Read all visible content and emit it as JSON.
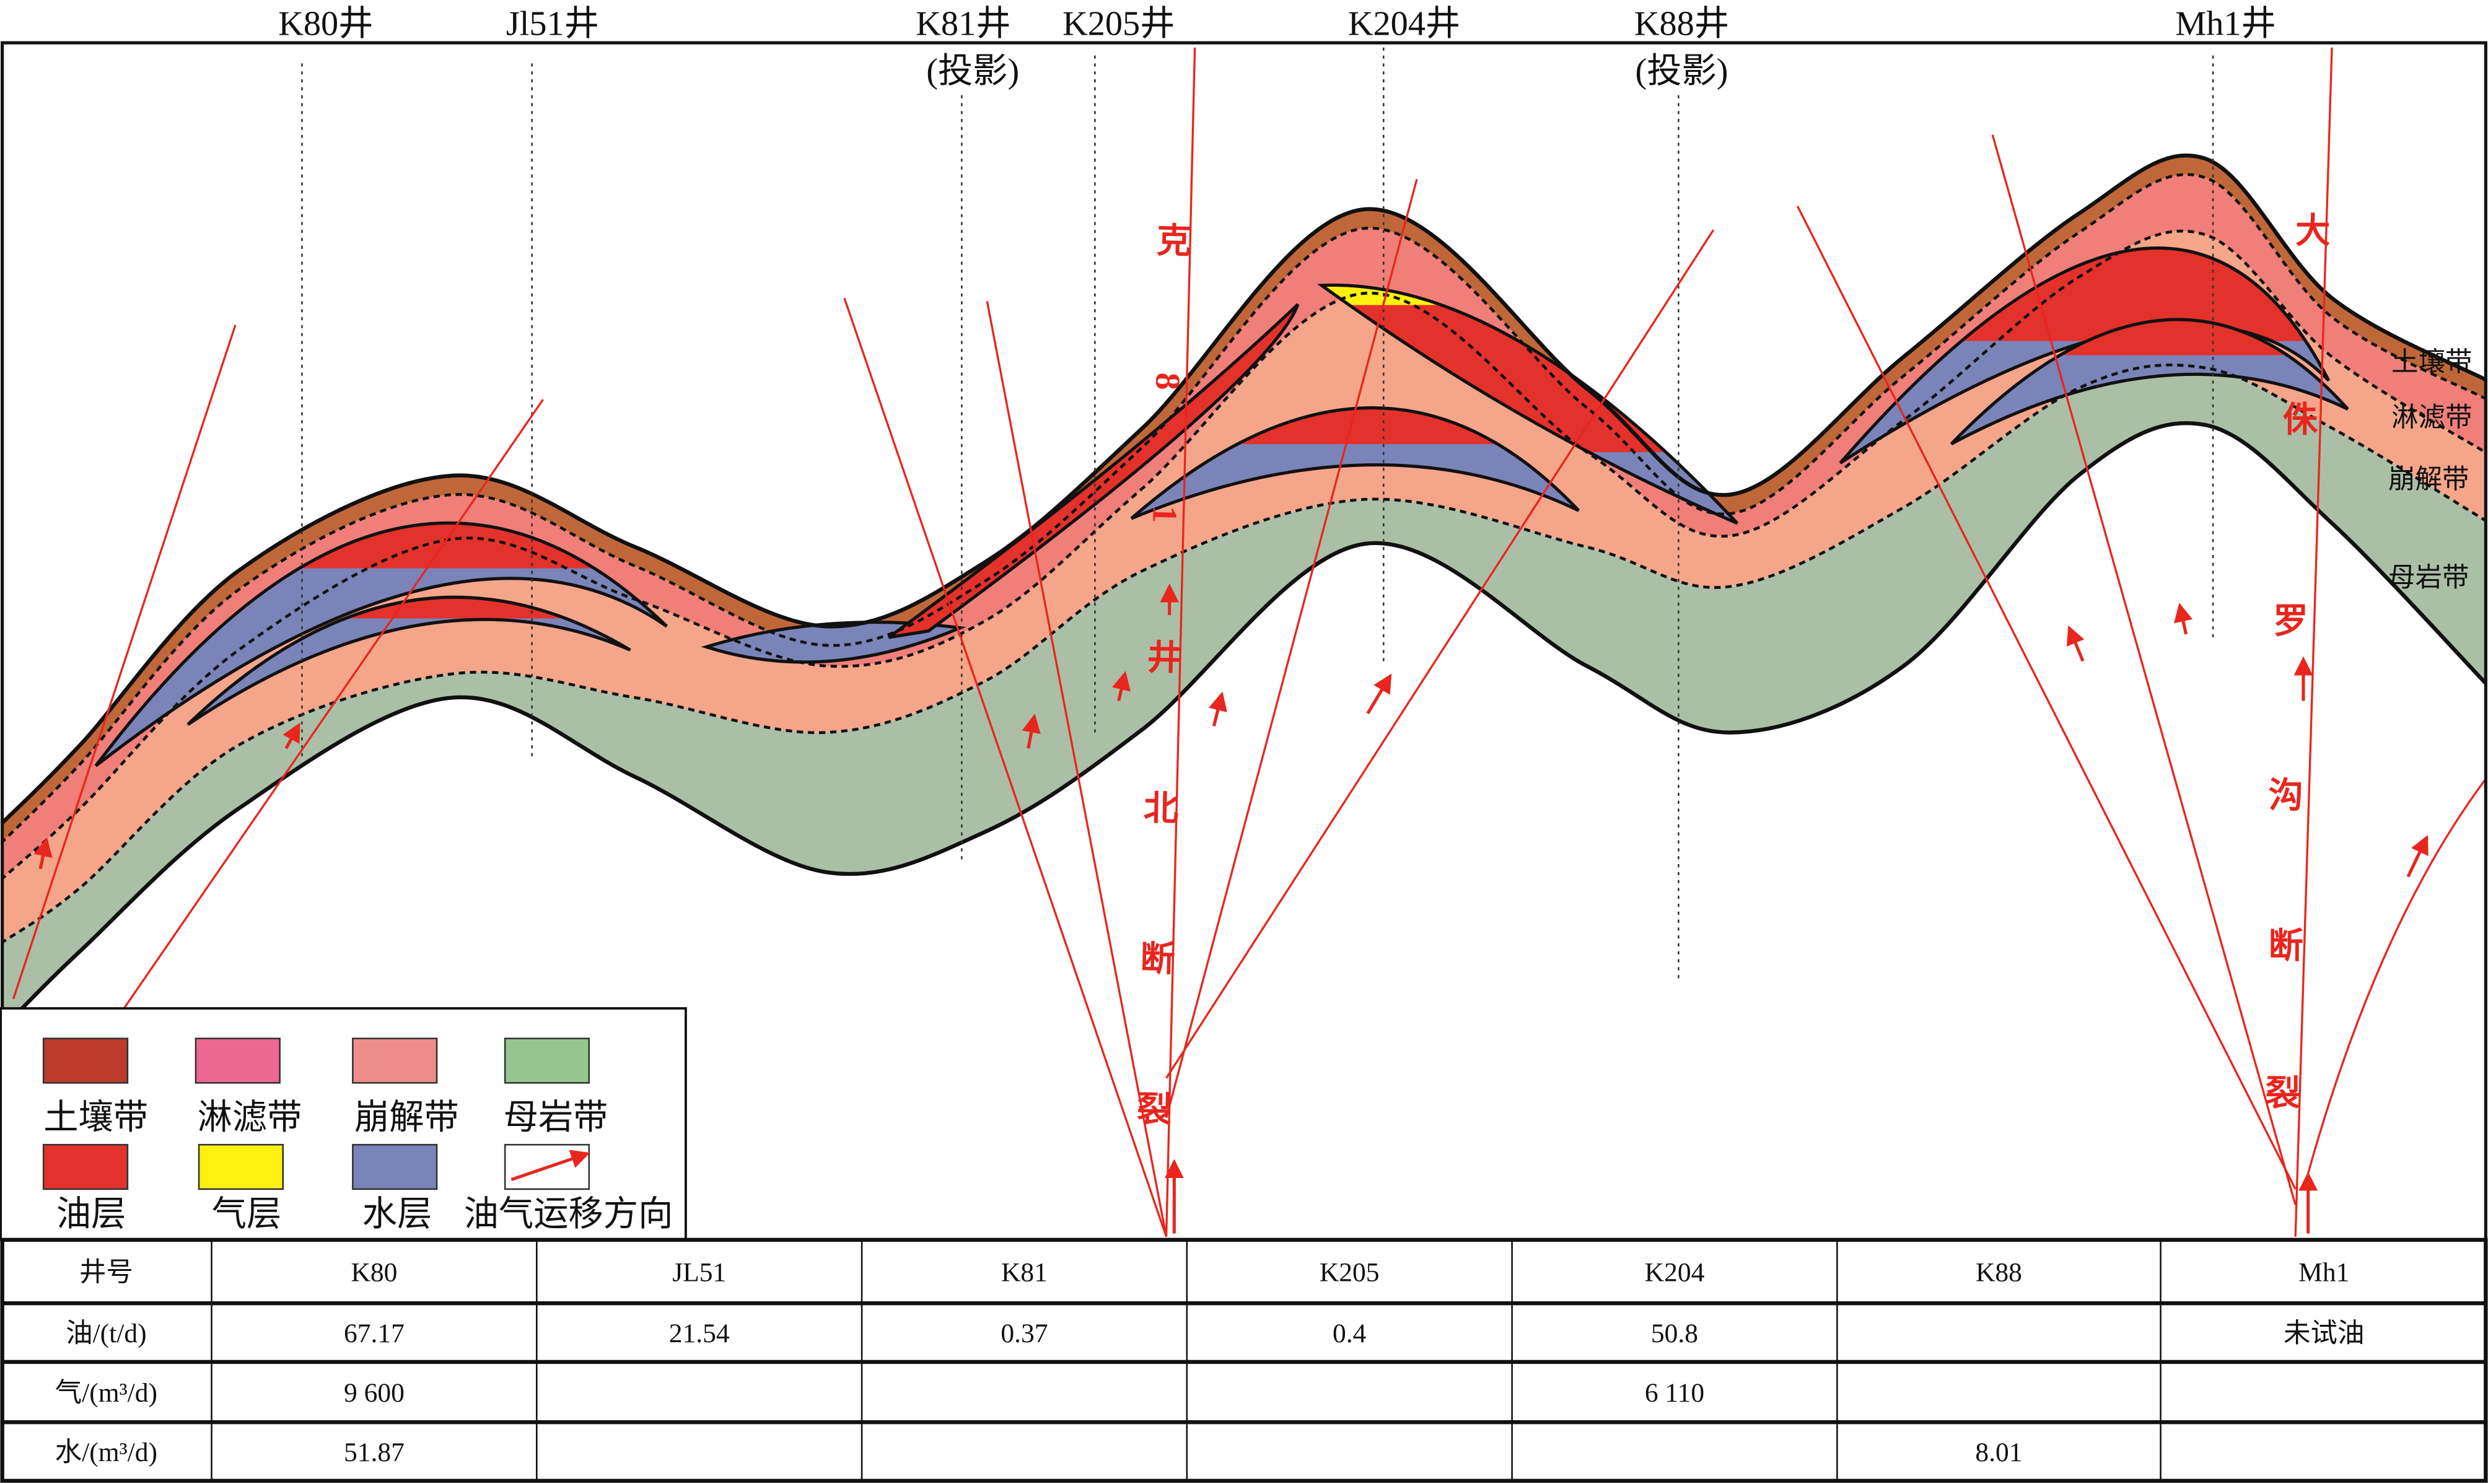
{
  "wells": [
    {
      "id": "k80",
      "label": "K80井"
    },
    {
      "id": "jl51",
      "label": "Jl51井"
    },
    {
      "id": "k81",
      "label": "K81井",
      "note": "(投影)"
    },
    {
      "id": "k205",
      "label": "K205井"
    },
    {
      "id": "k204",
      "label": "K204井"
    },
    {
      "id": "k88",
      "label": "K88井",
      "note": "(投影)"
    },
    {
      "id": "mh1",
      "label": "Mh1井"
    }
  ],
  "faults": {
    "left": {
      "name": "克81井北断裂",
      "chars": [
        "克",
        "81",
        "井",
        "北",
        "断",
        "裂"
      ]
    },
    "right": {
      "name": "大侏罗沟断裂",
      "chars": [
        "大",
        "侏",
        "罗",
        "沟",
        "断",
        "裂"
      ]
    }
  },
  "zones": [
    "土壤带",
    "淋滤带",
    "崩解带",
    "母岩带"
  ],
  "legend": {
    "items": [
      {
        "label": "土壤带",
        "color": "#bd3b2c"
      },
      {
        "label": "淋滤带",
        "color": "#ec6791"
      },
      {
        "label": "崩解带",
        "color": "#ef8d8b"
      },
      {
        "label": "母岩带",
        "color": "#95c58f"
      },
      {
        "label": "油层",
        "color": "#e3312c"
      },
      {
        "label": "气层",
        "color": "#fff00f"
      },
      {
        "label": "水层",
        "color": "#7a84b8"
      },
      {
        "label": "油气运移方向",
        "color": "#e8261e"
      }
    ]
  },
  "colors": {
    "soil": "#c0673a",
    "leaching": "#ef7f78",
    "collapse": "#f5a58a",
    "bedrock": "#abbfa7",
    "oil": "#e3312c",
    "gas": "#fff00f",
    "water": "#7a84b8",
    "fault": "#e8261e"
  },
  "table": {
    "headers": [
      "井号",
      "K80",
      "JL51",
      "K81",
      "K205",
      "K204",
      "K88",
      "Mh1"
    ],
    "rows": [
      [
        "油/(t/d)",
        "67.17",
        "21.54",
        "0.37",
        "0.4",
        "50.8",
        "",
        "未试油"
      ],
      [
        "气/(m³/d)",
        "9 600",
        "",
        "",
        "",
        "6 110",
        "",
        ""
      ],
      [
        "水/(m³/d)",
        "51.87",
        "",
        "",
        "",
        "",
        "8.01",
        ""
      ]
    ]
  }
}
